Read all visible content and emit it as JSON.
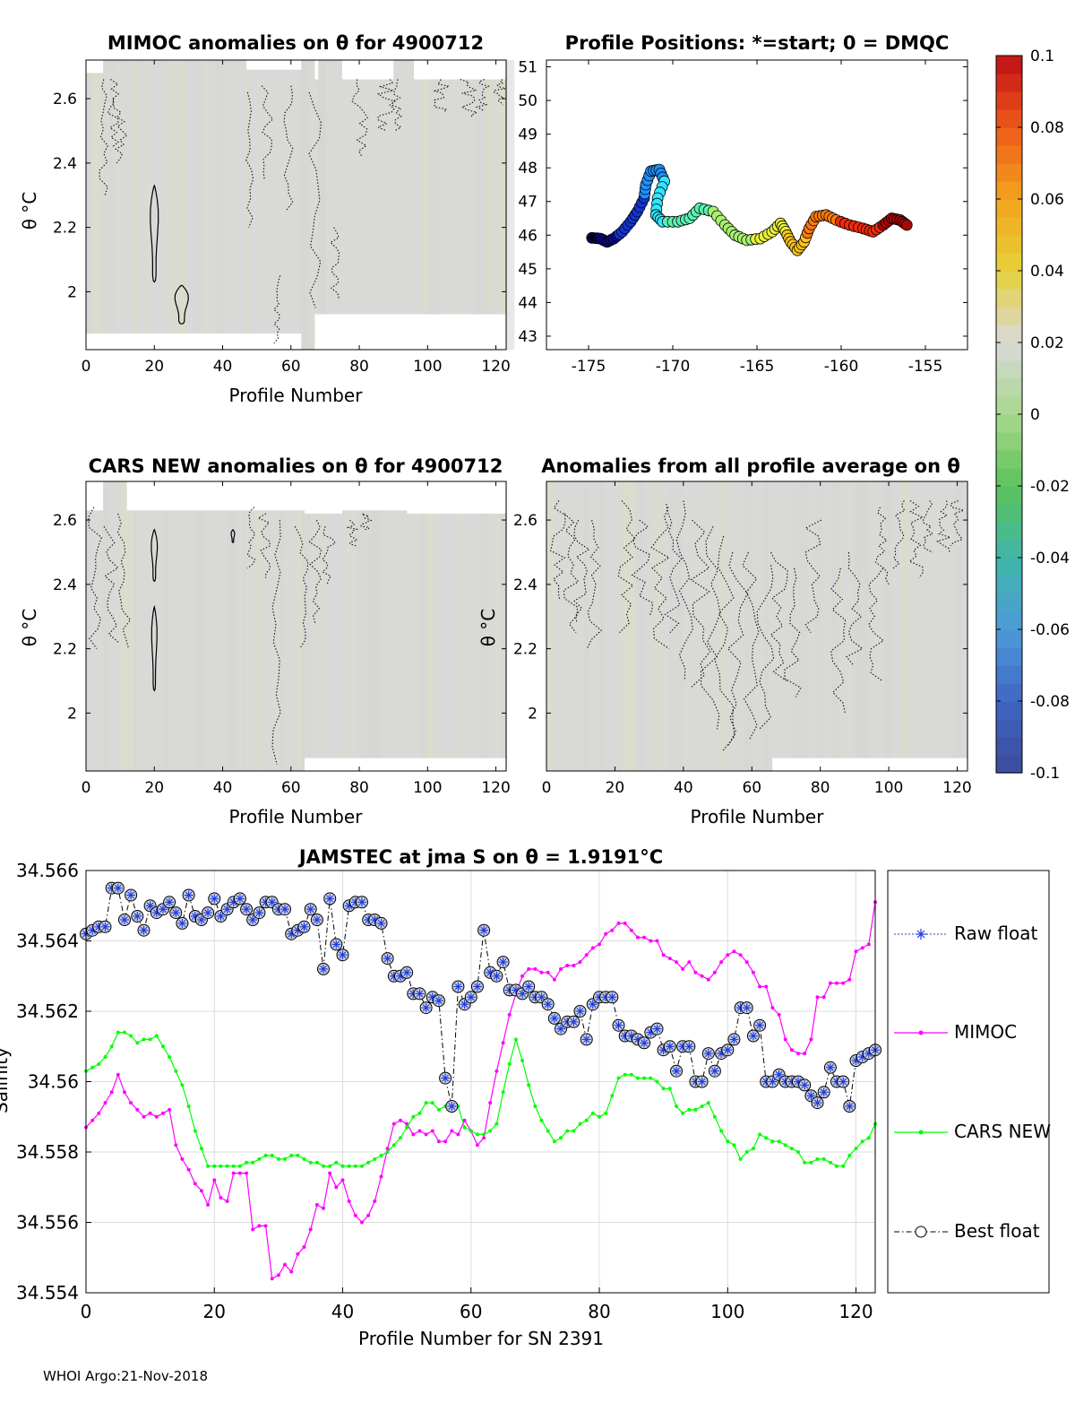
{
  "footer": "WHOI Argo:21-Nov-2018",
  "chart_data": [
    {
      "type": "heatmap",
      "title": "MIMOC anomalies on θ  for 4900712",
      "xlabel": "Profile Number",
      "ylabel": "θ °C",
      "xlim": [
        0,
        123
      ],
      "ylim": [
        1.82,
        2.72
      ],
      "xticks": [
        "0",
        "20",
        "40",
        "60",
        "80",
        "100",
        "120"
      ],
      "yticks": [
        "2",
        "2.2",
        "2.4",
        "2.6"
      ]
    },
    {
      "type": "scatter",
      "title": "Profile Positions: *=start; 0 = DMQC",
      "xlim": [
        -177.5,
        -152.5
      ],
      "ylim": [
        42.6,
        51.2
      ],
      "xticks": [
        "-175",
        "-170",
        "-165",
        "-160",
        "-155"
      ],
      "yticks": [
        "43",
        "44",
        "45",
        "46",
        "47",
        "48",
        "49",
        "50",
        "51"
      ],
      "track": [
        [
          -174.8,
          45.92
        ],
        [
          -174.3,
          45.9
        ],
        [
          -173.9,
          45.8
        ],
        [
          -173.5,
          45.9
        ],
        [
          -173.0,
          46.1
        ],
        [
          -172.5,
          46.4
        ],
        [
          -172.1,
          46.7
        ],
        [
          -171.7,
          47.1
        ],
        [
          -171.6,
          47.5
        ],
        [
          -171.3,
          47.9
        ],
        [
          -170.8,
          47.95
        ],
        [
          -170.5,
          47.6
        ],
        [
          -170.9,
          47.1
        ],
        [
          -171.0,
          46.6
        ],
        [
          -170.6,
          46.4
        ],
        [
          -169.7,
          46.4
        ],
        [
          -169.0,
          46.5
        ],
        [
          -168.4,
          46.8
        ],
        [
          -167.6,
          46.7
        ],
        [
          -166.9,
          46.3
        ],
        [
          -166.3,
          46.0
        ],
        [
          -165.6,
          45.85
        ],
        [
          -164.8,
          45.9
        ],
        [
          -164.1,
          46.1
        ],
        [
          -163.6,
          46.35
        ],
        [
          -163.3,
          46.1
        ],
        [
          -163.0,
          45.8
        ],
        [
          -162.6,
          45.55
        ],
        [
          -162.2,
          45.8
        ],
        [
          -161.9,
          46.2
        ],
        [
          -161.5,
          46.55
        ],
        [
          -160.9,
          46.6
        ],
        [
          -160.3,
          46.45
        ],
        [
          -159.5,
          46.3
        ],
        [
          -158.7,
          46.2
        ],
        [
          -158.1,
          46.1
        ],
        [
          -157.5,
          46.3
        ],
        [
          -157.0,
          46.5
        ],
        [
          -156.5,
          46.45
        ],
        [
          -156.1,
          46.3
        ]
      ],
      "start_marker": "*"
    },
    {
      "type": "heatmap",
      "title": "CARS NEW anomalies on θ for 4900712",
      "xlabel": "Profile Number",
      "ylabel": "θ °C",
      "xlim": [
        0,
        123
      ],
      "ylim": [
        1.82,
        2.72
      ],
      "xticks": [
        "0",
        "20",
        "40",
        "60",
        "80",
        "100",
        "120"
      ],
      "yticks": [
        "2",
        "2.2",
        "2.4",
        "2.6"
      ]
    },
    {
      "type": "heatmap",
      "title": "Anomalies from all profile average on θ",
      "xlabel": "Profile Number",
      "ylabel": "θ °C",
      "xlim": [
        0,
        123
      ],
      "ylim": [
        1.82,
        2.72
      ],
      "xticks": [
        "0",
        "20",
        "40",
        "60",
        "80",
        "100",
        "120"
      ],
      "yticks": [
        "2",
        "2.2",
        "2.4",
        "2.6"
      ]
    },
    {
      "type": "colorbar",
      "range": [
        -0.1,
        0.1
      ],
      "ticks": [
        "0.1",
        "0.08",
        "0.06",
        "0.04",
        "0.02",
        "0",
        "-0.02",
        "-0.04",
        "-0.06",
        "-0.08",
        "-0.1"
      ],
      "colormap": [
        "#3a4a9a",
        "#3f67c4",
        "#4d9ad9",
        "#3fb6a8",
        "#5cc25a",
        "#a8d88c",
        "#d9d9d9",
        "#e6d13a",
        "#f3a41c",
        "#ee5a1a",
        "#c00f16"
      ]
    },
    {
      "type": "line",
      "title": "JAMSTEC at jma S on θ = 1.9191°C",
      "xlabel": "Profile Number for SN 2391",
      "ylabel": "Salinity",
      "xlim": [
        0,
        123
      ],
      "ylim": [
        34.554,
        34.566
      ],
      "xticks": [
        "0",
        "20",
        "40",
        "60",
        "80",
        "100",
        "120"
      ],
      "yticks": [
        "34.554",
        "34.556",
        "34.558",
        "34.56",
        "34.562",
        "34.564",
        "34.566"
      ],
      "legend": [
        "Raw float",
        "MIMOC",
        "CARS NEW",
        "Best float"
      ],
      "series": [
        {
          "name": "Raw float",
          "color": "#1e3cdc",
          "values": [
            34.5642,
            34.5643,
            34.5644,
            34.5644,
            34.5655,
            34.5655,
            34.5646,
            34.5653,
            34.5647,
            34.5643,
            34.565,
            34.5648,
            34.5649,
            34.5651,
            34.5648,
            34.5645,
            34.5653,
            34.5647,
            34.5646,
            34.5648,
            34.5652,
            34.5647,
            34.5649,
            34.5651,
            34.5652,
            34.5649,
            34.5646,
            34.5648,
            34.5651,
            34.5651,
            34.5649,
            34.5649,
            34.5642,
            34.5643,
            34.5644,
            34.5649,
            34.5646,
            34.5632,
            34.5652,
            34.5639,
            34.5636,
            34.565,
            34.5651,
            34.5651,
            34.5646,
            34.5646,
            34.5645,
            34.5635,
            34.563,
            34.563,
            34.5631,
            34.5625,
            34.5625,
            34.5621,
            34.5624,
            34.5623,
            34.5601,
            34.5593,
            34.5627,
            34.5622,
            34.5624,
            34.5627,
            34.5643,
            34.5631,
            34.563,
            34.5634,
            34.5626,
            34.5626,
            34.5625,
            34.5627,
            34.5624,
            34.5624,
            34.5622,
            34.5618,
            34.5615,
            34.5617,
            34.5617,
            34.562,
            34.5612,
            34.5622,
            34.5624,
            34.5624,
            34.5624,
            34.5616,
            34.5613,
            34.5613,
            34.5612,
            34.5611,
            34.5614,
            34.5615,
            34.5609,
            34.561,
            34.5603,
            34.561,
            34.561,
            34.56,
            34.56,
            34.5608,
            34.5603,
            34.5608,
            34.5609,
            34.5612,
            34.5621,
            34.5621,
            34.5613,
            34.5616,
            34.56,
            34.56,
            34.5602,
            34.56,
            34.56,
            34.56,
            34.5599,
            34.5596,
            34.5594,
            34.5597,
            34.5604,
            34.56,
            34.56,
            34.5593,
            34.5606,
            34.5607,
            34.5608,
            34.5609
          ]
        },
        {
          "name": "MIMOC",
          "color": "#ff00ff",
          "values": [
            34.5587,
            34.5589,
            34.5591,
            34.5594,
            34.5597,
            34.5602,
            34.5597,
            34.5594,
            34.5592,
            34.559,
            34.5591,
            34.559,
            34.5591,
            34.5592,
            34.5582,
            34.5578,
            34.5575,
            34.5571,
            34.5569,
            34.5565,
            34.5572,
            34.5567,
            34.5566,
            34.5574,
            34.5574,
            34.5574,
            34.5558,
            34.5559,
            34.5559,
            34.5544,
            34.5545,
            34.5548,
            34.5546,
            34.5551,
            34.5553,
            34.5558,
            34.5565,
            34.5564,
            34.5574,
            34.557,
            34.5572,
            34.5566,
            34.5562,
            34.556,
            34.5562,
            34.5566,
            34.5573,
            34.5581,
            34.5588,
            34.5589,
            34.5588,
            34.5585,
            34.5586,
            34.5585,
            34.5586,
            34.5583,
            34.5583,
            34.5586,
            34.5585,
            34.5589,
            34.5586,
            34.5582,
            34.5584,
            34.5594,
            34.5603,
            34.5611,
            34.5619,
            34.5625,
            34.563,
            34.5632,
            34.5632,
            34.5631,
            34.5631,
            34.5629,
            34.5632,
            34.5633,
            34.5633,
            34.5634,
            34.5636,
            34.5638,
            34.5639,
            34.5642,
            34.5643,
            34.5645,
            34.5645,
            34.5643,
            34.5641,
            34.5641,
            34.564,
            34.564,
            34.5636,
            34.5635,
            34.5634,
            34.5632,
            34.5634,
            34.5631,
            34.563,
            34.5629,
            34.5631,
            34.5634,
            34.5636,
            34.5637,
            34.5636,
            34.5634,
            34.5631,
            34.5627,
            34.5627,
            34.5621,
            34.5619,
            34.5612,
            34.5609,
            34.5608,
            34.5608,
            34.5612,
            34.5624,
            34.5624,
            34.5628,
            34.5628,
            34.5628,
            34.5629,
            34.5637,
            34.5638,
            34.5639,
            34.5651
          ]
        },
        {
          "name": "CARS NEW",
          "color": "#00ff00",
          "values": [
            34.5603,
            34.5604,
            34.5605,
            34.5607,
            34.561,
            34.5614,
            34.5614,
            34.5613,
            34.5611,
            34.5612,
            34.5612,
            34.5613,
            34.561,
            34.5607,
            34.5603,
            34.5599,
            34.5593,
            34.5586,
            34.5581,
            34.5576,
            34.5576,
            34.5576,
            34.5576,
            34.5576,
            34.5576,
            34.5577,
            34.5577,
            34.5578,
            34.5579,
            34.5579,
            34.5578,
            34.5578,
            34.5579,
            34.5579,
            34.5578,
            34.5577,
            34.5577,
            34.5576,
            34.5576,
            34.5577,
            34.5576,
            34.5576,
            34.5576,
            34.5576,
            34.5577,
            34.5578,
            34.5579,
            34.558,
            34.5582,
            34.5584,
            34.5587,
            34.559,
            34.5591,
            34.5594,
            34.5594,
            34.5592,
            34.5593,
            34.5594,
            34.5593,
            34.5587,
            34.5586,
            34.5585,
            34.5585,
            34.5586,
            34.5588,
            34.5597,
            34.5605,
            34.5612,
            34.5606,
            34.5599,
            34.5593,
            34.5589,
            34.5586,
            34.5583,
            34.5584,
            34.5586,
            34.5586,
            34.5588,
            34.5589,
            34.5591,
            34.559,
            34.5591,
            34.5596,
            34.5601,
            34.5602,
            34.5602,
            34.5601,
            34.5601,
            34.5601,
            34.56,
            34.5598,
            34.5598,
            34.5593,
            34.5591,
            34.5592,
            34.5592,
            34.5593,
            34.5594,
            34.559,
            34.5586,
            34.5583,
            34.5582,
            34.5578,
            34.558,
            34.5581,
            34.5585,
            34.5584,
            34.5583,
            34.5583,
            34.5582,
            34.5581,
            34.558,
            34.5577,
            34.5577,
            34.5578,
            34.5578,
            34.5577,
            34.5576,
            34.5576,
            34.5579,
            34.5581,
            34.5583,
            34.5584,
            34.5588
          ]
        },
        {
          "name": "Best float",
          "color": "#000000"
        }
      ]
    }
  ]
}
